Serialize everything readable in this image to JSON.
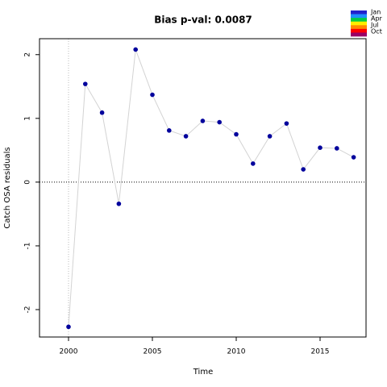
{
  "chart_data": {
    "type": "line",
    "title": "Bias p-val: 0.0087",
    "x_label": "Time",
    "y_label": "Catch OSA residuals",
    "x": [
      2000,
      2001,
      2002,
      2003,
      2004,
      2005,
      2006,
      2007,
      2008,
      2009,
      2010,
      2011,
      2012,
      2013,
      2014,
      2015,
      2016,
      2017
    ],
    "series": [
      {
        "color": "#00009c",
        "line_color": "#d3d3d3",
        "values": [
          -2.27,
          1.54,
          1.09,
          -0.34,
          2.08,
          1.37,
          0.81,
          0.72,
          0.96,
          0.94,
          0.75,
          0.29,
          0.72,
          0.92,
          0.2,
          0.54,
          0.53,
          0.39
        ]
      }
    ],
    "xlim": [
      1998.27,
      2017.74
    ],
    "ylim": [
      -2.43,
      2.25
    ],
    "xticks": [
      2000,
      2005,
      2010,
      2015
    ],
    "yticks": [
      -2,
      -1,
      0,
      1,
      2
    ],
    "hline": 0,
    "vline": 2000,
    "title_color": "#ff0000",
    "legend": {
      "position": "top-right",
      "labels": [
        "Jan",
        "Apr",
        "Jul",
        "Oct"
      ],
      "colors": [
        "#2222cc",
        "#1e90ff",
        "#00cc44",
        "#ffee00",
        "#ff8800",
        "#ff0000",
        "#990066"
      ]
    }
  }
}
